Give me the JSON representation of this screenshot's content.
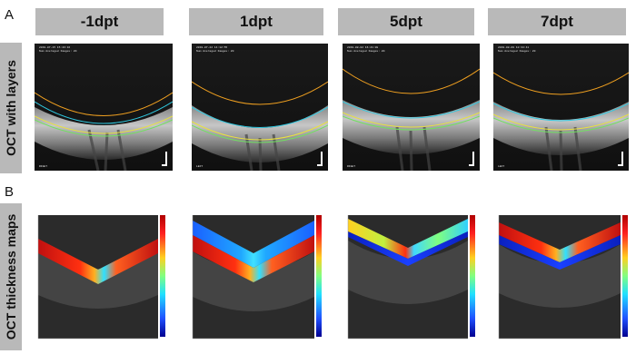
{
  "panels": {
    "a": "A",
    "b": "B"
  },
  "row_labels": {
    "oct_layers": "OCT with layers",
    "thickness_maps": "OCT thickness maps"
  },
  "columns": [
    {
      "label": "-1dpt",
      "scan_header": "2019-07-15 15:43:16\nNum Averaged Images: 20",
      "eye": "RIGHT"
    },
    {
      "label": "1dpt",
      "scan_header": "2019-07-22 14:12:55\nNum Averaged Images: 20",
      "eye": "LEFT"
    },
    {
      "label": "5dpt",
      "scan_header": "2019-08-02 16:21:08\nNum Averaged Images: 20",
      "eye": "RIGHT"
    },
    {
      "label": "7dpt",
      "scan_header": "2019-08-09 10:34:41\nNum Averaged Images: 20",
      "eye": "LEFT"
    }
  ],
  "colors": {
    "header_fill": "#b9b9b9",
    "layer_orange": "#f0a020",
    "layer_cyan": "#30c8e0",
    "layer_yellow": "#e8e040",
    "layer_green": "#70e060"
  },
  "thickness_maps": [
    {
      "upper_band": "blue",
      "lower_band": "red",
      "notes": "red lateral band, blue-cyan center"
    },
    {
      "upper_band": "blue",
      "lower_band": "red",
      "notes": "blue band top, red/yellow below"
    },
    {
      "upper_band": "yellow",
      "lower_band": "blue",
      "notes": "yellow/cyan top, blue below"
    },
    {
      "upper_band": "red",
      "lower_band": "blue",
      "notes": "red top, blue bottom"
    }
  ]
}
